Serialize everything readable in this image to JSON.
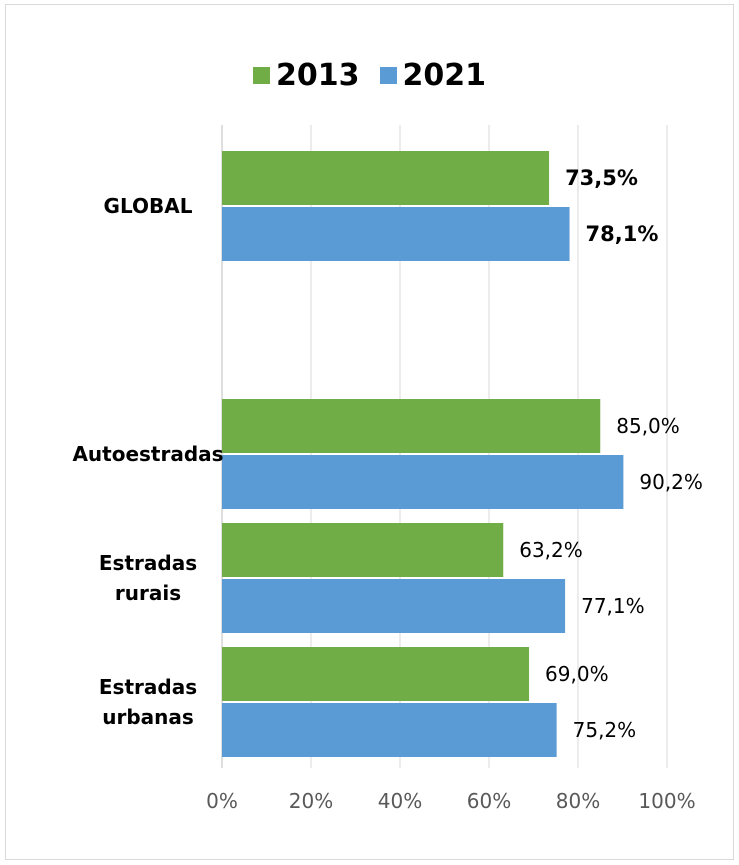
{
  "chart_data": {
    "type": "bar",
    "orientation": "horizontal",
    "categories": [
      "GLOBAL",
      "Autoestradas",
      "Estradas rurais",
      "Estradas urbanas"
    ],
    "category_lines": [
      [
        "GLOBAL"
      ],
      [
        "Autoestradas"
      ],
      [
        "Estradas",
        "rurais"
      ],
      [
        "Estradas",
        "urbanas"
      ]
    ],
    "series": [
      {
        "name": "2013",
        "values": [
          73.5,
          85.0,
          63.2,
          69.0
        ],
        "labels": [
          "73,5%",
          "85,0%",
          "63,2%",
          "69,0%"
        ],
        "color": "#70ad47"
      },
      {
        "name": "2021",
        "values": [
          78.1,
          90.2,
          77.1,
          75.2
        ],
        "labels": [
          "78,1%",
          "90,2%",
          "77,1%",
          "75,2%"
        ],
        "color": "#5b9bd5"
      }
    ],
    "xlim": [
      0,
      100
    ],
    "xticks": [
      "0%",
      "20%",
      "40%",
      "60%",
      "80%",
      "100%"
    ],
    "legend": "top",
    "grid": true,
    "emphasized_category": "GLOBAL"
  }
}
